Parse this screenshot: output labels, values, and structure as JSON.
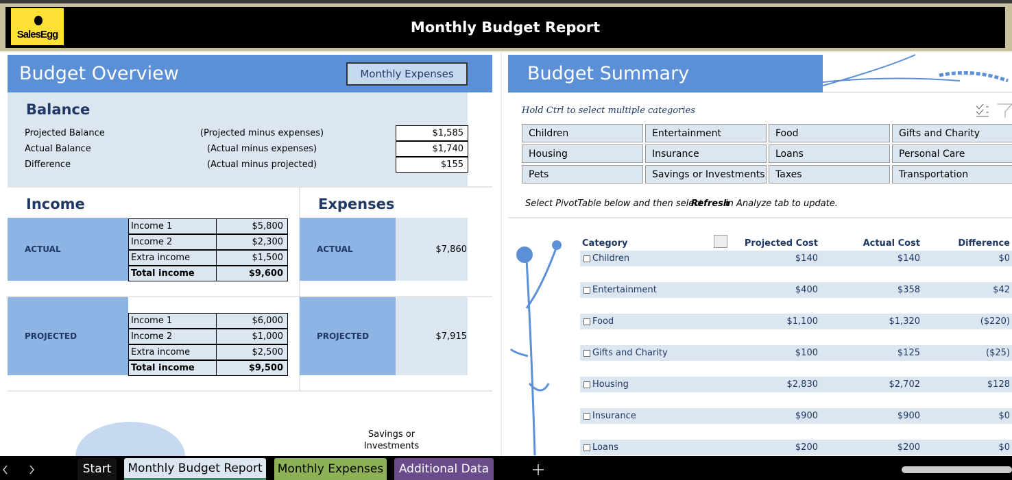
{
  "header": {
    "logo": "SalesEgg",
    "title": "Monthly Budget Report"
  },
  "overview": {
    "title": "Budget Overview",
    "button": "Monthly Expenses",
    "balance": {
      "title": "Balance",
      "rows": [
        [
          "Projected Balance",
          "(Projected  minus expenses)",
          "$1,585"
        ],
        [
          "Actual Balance",
          "(Actual  minus expenses)",
          "$1,740"
        ],
        [
          "Difference",
          "(Actual minus projected)",
          "$155"
        ]
      ]
    }
  },
  "income": {
    "title": "Income",
    "actual": {
      "label": "ACTUAL",
      "rows": [
        [
          "Income 1",
          "$5,800"
        ],
        [
          "Income 2",
          "$2,300"
        ],
        [
          "Extra income",
          "$1,500"
        ],
        [
          "Total income",
          "$9,600"
        ]
      ]
    },
    "projected": {
      "label": "PROJECTED",
      "rows": [
        [
          "Income 1",
          "$6,000"
        ],
        [
          "Income 2",
          "$1,000"
        ],
        [
          "Extra income",
          "$2,500"
        ],
        [
          "Total income",
          "$9,500"
        ]
      ]
    }
  },
  "expenses": {
    "title": "Expenses",
    "actual": {
      "label": "ACTUAL",
      "value": "$7,860"
    },
    "projected": {
      "label": "PROJECTED",
      "value": "$7,915"
    }
  },
  "chart_label": [
    "Savings or",
    "Investments"
  ],
  "summary": {
    "title": "Budget Summary",
    "hint": "Hold Ctrl to select multiple categories",
    "slicer": [
      "Children",
      "Entertainment",
      "Food",
      "Gifts and Charity",
      "Housing",
      "Insurance",
      "Loans",
      "Personal Care",
      "Pets",
      "Savings or Investments",
      "Taxes",
      "Transportation"
    ],
    "note": [
      "Select PivotTable below and then select ",
      "Refresh",
      " in Analyze tab to update."
    ],
    "table": {
      "headers": [
        "Category",
        "Projected Cost",
        "Actual Cost",
        "Difference"
      ],
      "rows": [
        [
          "Children",
          "$140",
          "$140",
          "$0"
        ],
        [
          "Entertainment",
          "$400",
          "$358",
          "$42"
        ],
        [
          "Food",
          "$1,100",
          "$1,320",
          "($220)"
        ],
        [
          "Gifts and Charity",
          "$100",
          "$125",
          "($25)"
        ],
        [
          "Housing",
          "$2,830",
          "$2,702",
          "$128"
        ],
        [
          "Insurance",
          "$900",
          "$900",
          "$0"
        ],
        [
          "Loans",
          "$200",
          "$200",
          "$0"
        ]
      ]
    }
  },
  "tabs": [
    "Start",
    "Monthly Budget Report",
    "Monthly Expenses",
    "Additional Data"
  ]
}
